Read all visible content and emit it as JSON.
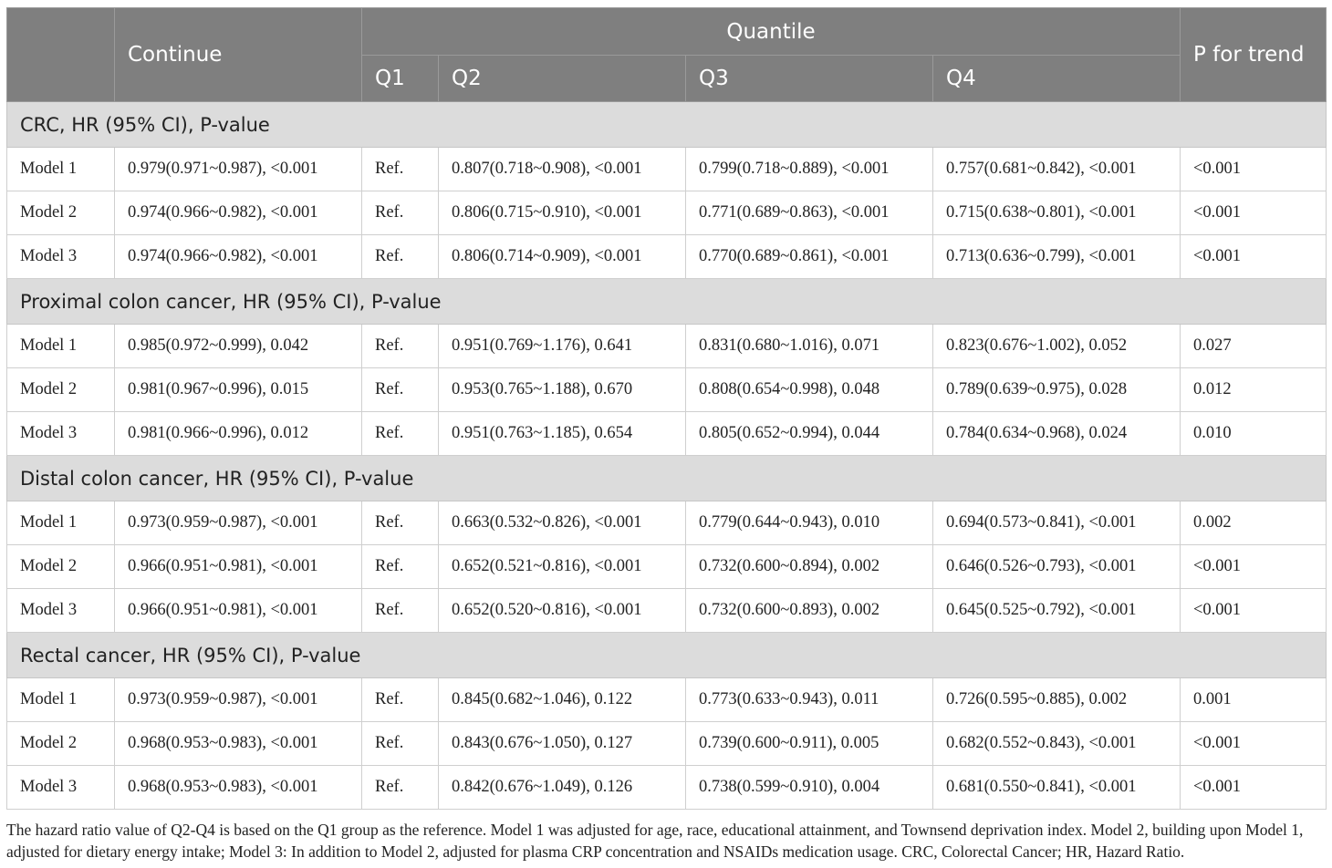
{
  "header": {
    "continue": "Continue",
    "quantile": "Quantile",
    "p_trend": "P for trend",
    "q1": "Q1",
    "q2": "Q2",
    "q3": "Q3",
    "q4": "Q4"
  },
  "sections": [
    {
      "title": "CRC, HR (95% CI), P-value",
      "rows": [
        [
          "Model 1",
          "0.979(0.971~0.987), <0.001",
          "Ref.",
          "0.807(0.718~0.908), <0.001",
          "0.799(0.718~0.889), <0.001",
          "0.757(0.681~0.842), <0.001",
          "<0.001"
        ],
        [
          "Model 2",
          "0.974(0.966~0.982), <0.001",
          "Ref.",
          "0.806(0.715~0.910), <0.001",
          "0.771(0.689~0.863), <0.001",
          "0.715(0.638~0.801), <0.001",
          "<0.001"
        ],
        [
          "Model 3",
          "0.974(0.966~0.982), <0.001",
          "Ref.",
          "0.806(0.714~0.909), <0.001",
          "0.770(0.689~0.861), <0.001",
          "0.713(0.636~0.799), <0.001",
          "<0.001"
        ]
      ]
    },
    {
      "title": "Proximal colon cancer, HR (95% CI), P-value",
      "rows": [
        [
          "Model 1",
          "0.985(0.972~0.999), 0.042",
          "Ref.",
          "0.951(0.769~1.176), 0.641",
          "0.831(0.680~1.016), 0.071",
          "0.823(0.676~1.002), 0.052",
          "0.027"
        ],
        [
          "Model 2",
          "0.981(0.967~0.996), 0.015",
          "Ref.",
          "0.953(0.765~1.188), 0.670",
          "0.808(0.654~0.998), 0.048",
          "0.789(0.639~0.975), 0.028",
          "0.012"
        ],
        [
          "Model 3",
          "0.981(0.966~0.996), 0.012",
          "Ref.",
          "0.951(0.763~1.185), 0.654",
          "0.805(0.652~0.994), 0.044",
          "0.784(0.634~0.968), 0.024",
          "0.010"
        ]
      ]
    },
    {
      "title": "Distal colon cancer, HR (95% CI), P-value",
      "rows": [
        [
          "Model 1",
          "0.973(0.959~0.987), <0.001",
          "Ref.",
          "0.663(0.532~0.826), <0.001",
          "0.779(0.644~0.943), 0.010",
          "0.694(0.573~0.841), <0.001",
          "0.002"
        ],
        [
          "Model 2",
          "0.966(0.951~0.981), <0.001",
          "Ref.",
          "0.652(0.521~0.816), <0.001",
          "0.732(0.600~0.894), 0.002",
          "0.646(0.526~0.793), <0.001",
          "<0.001"
        ],
        [
          "Model 3",
          "0.966(0.951~0.981), <0.001",
          "Ref.",
          "0.652(0.520~0.816), <0.001",
          "0.732(0.600~0.893), 0.002",
          "0.645(0.525~0.792), <0.001",
          "<0.001"
        ]
      ]
    },
    {
      "title": "Rectal cancer, HR (95% CI), P-value",
      "rows": [
        [
          "Model 1",
          "0.973(0.959~0.987), <0.001",
          "Ref.",
          "0.845(0.682~1.046), 0.122",
          "0.773(0.633~0.943), 0.011",
          "0.726(0.595~0.885), 0.002",
          "0.001"
        ],
        [
          "Model 2",
          "0.968(0.953~0.983), <0.001",
          "Ref.",
          "0.843(0.676~1.050), 0.127",
          "0.739(0.600~0.911), 0.005",
          "0.682(0.552~0.843), <0.001",
          "<0.001"
        ],
        [
          "Model 3",
          "0.968(0.953~0.983), <0.001",
          "Ref.",
          "0.842(0.676~1.049), 0.126",
          "0.738(0.599~0.910), 0.004",
          "0.681(0.550~0.841), <0.001",
          "<0.001"
        ]
      ]
    }
  ],
  "footnote": "The hazard ratio value of Q2-Q4 is based on the Q1 group as the reference. Model 1 was adjusted for age, race, educational attainment, and Townsend deprivation index. Model 2, building upon Model 1, adjusted for dietary energy intake; Model 3: In addition to Model 2, adjusted for plasma CRP concentration and NSAIDs medication usage. CRC, Colorectal Cancer; HR, Hazard Ratio."
}
